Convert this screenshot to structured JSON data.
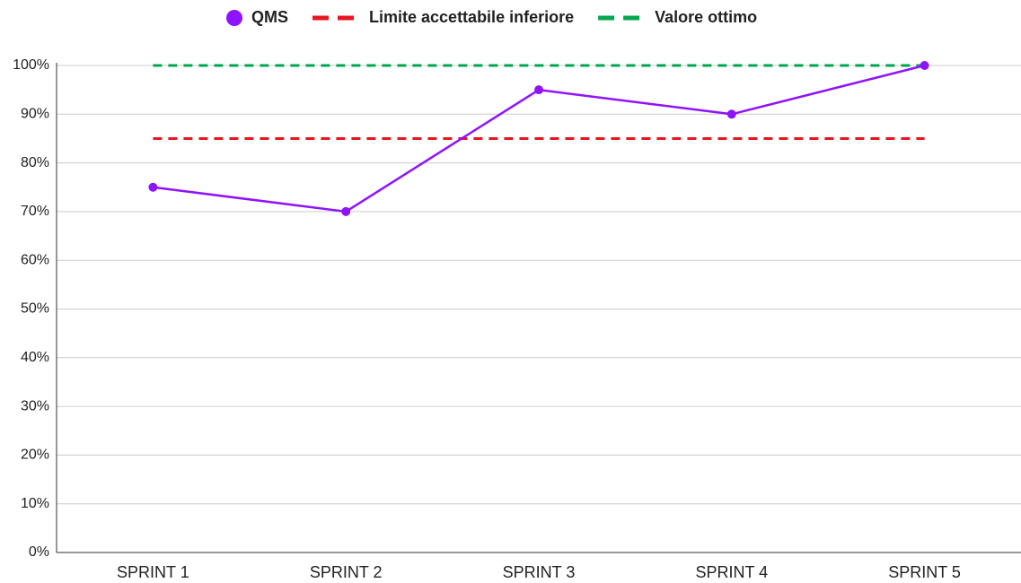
{
  "chart_data": {
    "type": "line",
    "categories": [
      "SPRINT 1",
      "SPRINT 2",
      "SPRINT 3",
      "SPRINT 4",
      "SPRINT 5"
    ],
    "series": [
      {
        "name": "QMS",
        "color": "#9013fe",
        "style": "solid",
        "markers": true,
        "values": [
          75,
          70,
          95,
          90,
          100
        ]
      },
      {
        "name": "Limite accettabile inferiore",
        "color": "#e8141e",
        "style": "dashed",
        "markers": false,
        "values": [
          85,
          85,
          85,
          85,
          85
        ]
      },
      {
        "name": "Valore ottimo",
        "color": "#00a650",
        "style": "dashed",
        "markers": false,
        "values": [
          100,
          100,
          100,
          100,
          100
        ]
      }
    ],
    "ylim": [
      0,
      100
    ],
    "yticks": [
      {
        "value": 0,
        "label": "0%"
      },
      {
        "value": 10,
        "label": "10%"
      },
      {
        "value": 20,
        "label": "20%"
      },
      {
        "value": 30,
        "label": "30%"
      },
      {
        "value": 40,
        "label": "40%"
      },
      {
        "value": 50,
        "label": "50%"
      },
      {
        "value": 60,
        "label": "60%"
      },
      {
        "value": 70,
        "label": "70%"
      },
      {
        "value": 80,
        "label": "80%"
      },
      {
        "value": 90,
        "label": "90%"
      },
      {
        "value": 100,
        "label": "100%"
      }
    ],
    "grid": true,
    "legend": "top"
  }
}
